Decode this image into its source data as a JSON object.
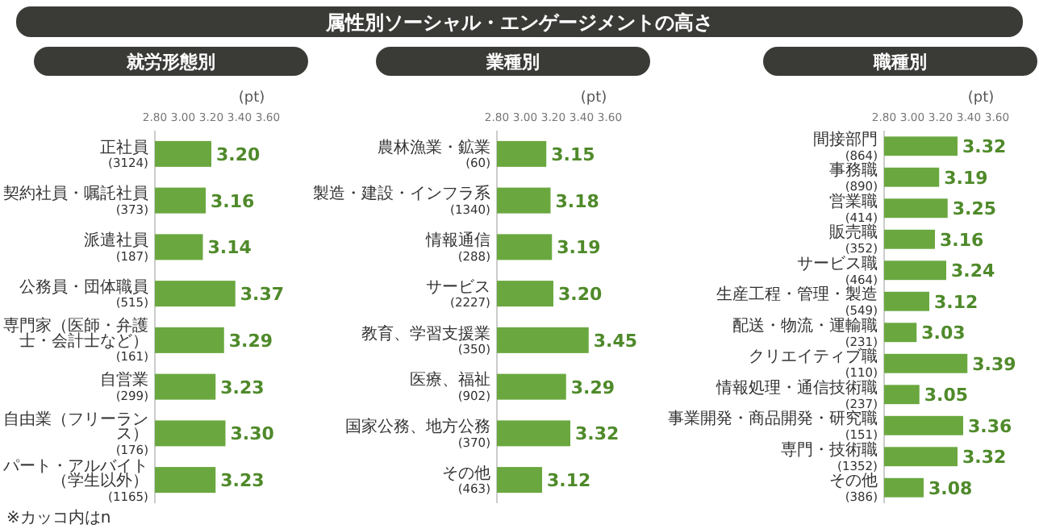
{
  "chart_data": [
    {
      "type": "other",
      "title": "属性別ソーシャル・エンゲージメントの高さ"
    },
    {
      "type": "bar",
      "orientation": "horizontal",
      "title": "就労形態別",
      "xlabel": "(pt)",
      "color": "#6aa83f",
      "xlim": [
        2.8,
        3.6
      ],
      "xticks": [
        {
          "value": 2.8,
          "label": "2.80"
        },
        {
          "value": 3.0,
          "label": "3.00"
        },
        {
          "value": 3.2,
          "label": "3.20"
        },
        {
          "value": 3.4,
          "label": "3.40"
        },
        {
          "value": 3.6,
          "label": "3.60"
        }
      ],
      "categories": [
        "正社員\n(3124)",
        "契約社員・嘱託社員\n(373)",
        "派遣社員\n(187)",
        "公務員・団体職員\n(515)",
        "専門家（医師・弁護士・会計士など）\n(161)",
        "自営業\n(299)",
        "自由業（フリーランス）\n(176)",
        "パート・アルバイト（学生以外）\n(1165)"
      ],
      "values": [
        3.2,
        3.16,
        3.14,
        3.37,
        3.29,
        3.23,
        3.3,
        3.23
      ],
      "value_labels": [
        "3.20",
        "3.16",
        "3.14",
        "3.37",
        "3.29",
        "3.23",
        "3.30",
        "3.23"
      ],
      "annotations": [
        "※カッコ内はn"
      ]
    },
    {
      "type": "bar",
      "orientation": "horizontal",
      "title": "業種別",
      "xlabel": "(pt)",
      "color": "#6aa83f",
      "xlim": [
        2.8,
        3.6
      ],
      "xticks": [
        {
          "value": 2.8,
          "label": "2.80"
        },
        {
          "value": 3.0,
          "label": "3.00"
        },
        {
          "value": 3.2,
          "label": "3.20"
        },
        {
          "value": 3.4,
          "label": "3.40"
        },
        {
          "value": 3.6,
          "label": "3.60"
        }
      ],
      "categories": [
        "農林漁業・鉱業\n(60)",
        "製造・建設・インフラ系\n(1340)",
        "情報通信\n(288)",
        "サービス\n(2227)",
        "教育、学習支援業\n(350)",
        "医療、福祉\n(902)",
        "国家公務、地方公務\n(370)",
        "その他\n(463)"
      ],
      "values": [
        3.15,
        3.18,
        3.19,
        3.2,
        3.45,
        3.29,
        3.32,
        3.12
      ],
      "value_labels": [
        "3.15",
        "3.18",
        "3.19",
        "3.20",
        "3.45",
        "3.29",
        "3.32",
        "3.12"
      ]
    },
    {
      "type": "bar",
      "orientation": "horizontal",
      "title": "職種別",
      "xlabel": "(pt)",
      "color": "#6aa83f",
      "xlim": [
        2.8,
        3.6
      ],
      "xticks": [
        {
          "value": 2.8,
          "label": "2.80"
        },
        {
          "value": 3.0,
          "label": "3.00"
        },
        {
          "value": 3.2,
          "label": "3.20"
        },
        {
          "value": 3.4,
          "label": "3.40"
        },
        {
          "value": 3.6,
          "label": "3.60"
        }
      ],
      "categories": [
        "間接部門\n(864)",
        "事務職\n(890)",
        "営業職\n(414)",
        "販売職\n(352)",
        "サービス職\n(464)",
        "生産工程・管理・製造\n(549)",
        "配送・物流・運輸職\n(231)",
        "クリエイティブ職\n(110)",
        "情報処理・通信技術職\n(237)",
        "事業開発・商品開発・研究職\n(151)",
        "専門・技術職\n(1352)",
        "その他\n(386)"
      ],
      "values": [
        3.32,
        3.19,
        3.25,
        3.16,
        3.24,
        3.12,
        3.03,
        3.39,
        3.05,
        3.36,
        3.32,
        3.08
      ],
      "value_labels": [
        "3.32",
        "3.19",
        "3.25",
        "3.16",
        "3.24",
        "3.12",
        "3.03",
        "3.39",
        "3.05",
        "3.36",
        "3.32",
        "3.08"
      ]
    }
  ]
}
